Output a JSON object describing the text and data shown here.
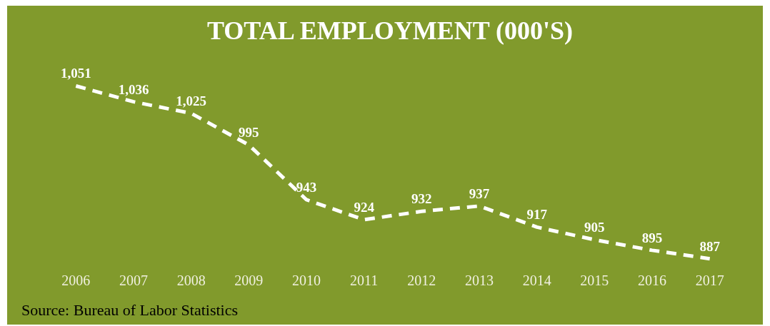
{
  "chart_data": {
    "type": "line",
    "title": "TOTAL EMPLOYMENT (000'S)",
    "categories": [
      "2006",
      "2007",
      "2008",
      "2009",
      "2010",
      "2011",
      "2012",
      "2013",
      "2014",
      "2015",
      "2016",
      "2017"
    ],
    "series": [
      {
        "color": "#ffffff",
        "values": [
          1051,
          1036,
          1025,
          995,
          943,
          924,
          932,
          937,
          917,
          905,
          895,
          887
        ],
        "value_labels": [
          "1,051",
          "1,036",
          "1,025",
          "995",
          "943",
          "924",
          "932",
          "937",
          "917",
          "905",
          "895",
          "887"
        ]
      }
    ],
    "tick_labels": "x",
    "line_style": "dashed",
    "annotations": [
      "Source: Bureau of Labor Statistics"
    ]
  }
}
